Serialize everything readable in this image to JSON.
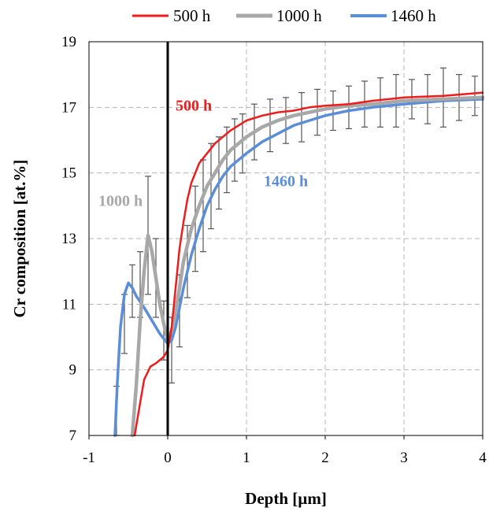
{
  "chart_data": {
    "type": "line",
    "title": "",
    "xlabel": "Depth [µm]",
    "ylabel": "Cr composition [at.%]",
    "xlim": [
      -1,
      4
    ],
    "ylim": [
      7,
      19
    ],
    "x_ticks": [
      "-1",
      "0",
      "1",
      "2",
      "3",
      "4"
    ],
    "y_ticks": [
      "7",
      "9",
      "11",
      "13",
      "15",
      "17",
      "19"
    ],
    "grid": true,
    "legend_position": "top",
    "vertical_line_x": 0,
    "series": [
      {
        "name": "500 h",
        "color": "#ee1c1c",
        "x": [
          -0.42,
          -0.35,
          -0.3,
          -0.22,
          -0.15,
          -0.05,
          0.0,
          0.05,
          0.1,
          0.15,
          0.2,
          0.25,
          0.3,
          0.4,
          0.5,
          0.6,
          0.7,
          0.8,
          0.9,
          1.0,
          1.2,
          1.4,
          1.6,
          1.8,
          2.0,
          2.3,
          2.6,
          3.0,
          3.5,
          4.0
        ],
        "y": [
          7.0,
          8.0,
          8.7,
          9.1,
          9.2,
          9.4,
          9.6,
          10.3,
          11.5,
          12.7,
          13.5,
          14.2,
          14.7,
          15.3,
          15.6,
          15.9,
          16.1,
          16.3,
          16.45,
          16.6,
          16.75,
          16.85,
          16.9,
          17.0,
          17.05,
          17.1,
          17.2,
          17.3,
          17.35,
          17.45
        ],
        "label": "500 h"
      },
      {
        "name": "1000 h",
        "color": "#a8a8a8",
        "x": [
          -0.45,
          -0.4,
          -0.35,
          -0.3,
          -0.25,
          -0.2,
          -0.15,
          -0.1,
          -0.05,
          0.0,
          0.05,
          0.1,
          0.15,
          0.2,
          0.3,
          0.4,
          0.5,
          0.6,
          0.7,
          0.8,
          0.9,
          1.0,
          1.2,
          1.4,
          1.6,
          1.8,
          2.0,
          2.3,
          2.6,
          3.0,
          3.5,
          4.0
        ],
        "y": [
          7.0,
          8.5,
          10.5,
          12.0,
          13.1,
          12.6,
          11.8,
          11.0,
          10.4,
          9.9,
          10.2,
          10.8,
          11.5,
          12.3,
          13.3,
          14.0,
          14.6,
          15.0,
          15.4,
          15.7,
          15.9,
          16.1,
          16.4,
          16.6,
          16.75,
          16.85,
          16.95,
          17.05,
          17.1,
          17.2,
          17.25,
          17.3
        ],
        "label": "1000 h"
      },
      {
        "name": "1460 h",
        "color": "#5b8ed6",
        "x": [
          -0.67,
          -0.64,
          -0.6,
          -0.55,
          -0.5,
          -0.45,
          -0.4,
          -0.3,
          -0.2,
          -0.1,
          0.0,
          0.05,
          0.1,
          0.15,
          0.2,
          0.3,
          0.4,
          0.5,
          0.6,
          0.7,
          0.8,
          1.0,
          1.2,
          1.4,
          1.6,
          1.8,
          2.0,
          2.3,
          2.6,
          3.0,
          3.5,
          4.0
        ],
        "y": [
          7.0,
          8.6,
          10.3,
          11.3,
          11.65,
          11.5,
          11.25,
          10.9,
          10.5,
          10.1,
          9.8,
          9.9,
          10.3,
          10.9,
          11.5,
          12.5,
          13.3,
          14.0,
          14.5,
          14.9,
          15.2,
          15.6,
          15.95,
          16.2,
          16.45,
          16.6,
          16.75,
          16.9,
          17.0,
          17.1,
          17.2,
          17.25
        ],
        "label": "1460 h"
      }
    ],
    "error_bars": {
      "x": [
        -0.65,
        -0.55,
        -0.45,
        -0.35,
        -0.25,
        -0.15,
        -0.05,
        0.05,
        0.15,
        0.25,
        0.35,
        0.45,
        0.55,
        0.65,
        0.75,
        0.85,
        0.95,
        1.1,
        1.3,
        1.5,
        1.7,
        1.9,
        2.1,
        2.3,
        2.5,
        2.7,
        2.9,
        3.1,
        3.3,
        3.5,
        3.7,
        3.9
      ],
      "y": [
        7.7,
        10.4,
        11.4,
        11.6,
        13.1,
        11.8,
        10.2,
        9.6,
        10.8,
        12.3,
        13.3,
        14.0,
        14.6,
        15.0,
        15.4,
        15.7,
        15.9,
        16.25,
        16.45,
        16.6,
        16.7,
        16.85,
        16.9,
        17.0,
        17.1,
        17.15,
        17.2,
        17.25,
        17.25,
        17.3,
        17.3,
        17.35
      ],
      "err": [
        0.8,
        0.9,
        0.8,
        1.0,
        1.8,
        1.2,
        0.9,
        1.0,
        1.1,
        1.1,
        1.3,
        1.4,
        1.3,
        1.1,
        1.0,
        0.95,
        0.9,
        0.85,
        0.8,
        0.7,
        0.75,
        0.7,
        0.6,
        0.65,
        0.7,
        0.75,
        0.8,
        0.6,
        0.75,
        0.9,
        0.7,
        0.6
      ]
    },
    "annotations": [
      {
        "text": "500 h",
        "x": 0.1,
        "y": 16.9,
        "color": "#ee1c1c"
      },
      {
        "text": "1000 h",
        "x": -0.88,
        "y": 14.0,
        "color": "#a8a8a8"
      },
      {
        "text": "1460 h",
        "x": 1.22,
        "y": 14.6,
        "color": "#5b8ed6"
      }
    ]
  }
}
